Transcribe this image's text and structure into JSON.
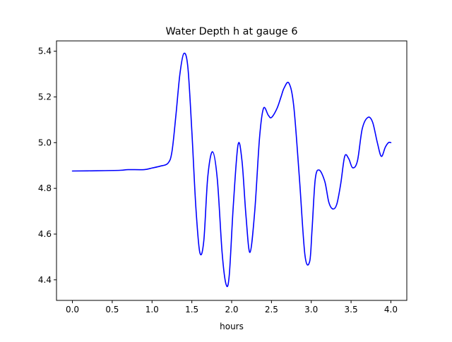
{
  "chart_data": {
    "type": "line",
    "title": "Water Depth h at gauge 6",
    "xlabel": "hours",
    "ylabel": "",
    "xlim": [
      -0.2,
      4.2
    ],
    "ylim": [
      4.31,
      5.445
    ],
    "xticks": [
      0.0,
      0.5,
      1.0,
      1.5,
      2.0,
      2.5,
      3.0,
      3.5,
      4.0
    ],
    "xtick_labels": [
      "0.0",
      "0.5",
      "1.0",
      "1.5",
      "2.0",
      "2.5",
      "3.0",
      "3.5",
      "4.0"
    ],
    "yticks": [
      4.4,
      4.6,
      4.8,
      5.0,
      5.2,
      5.4
    ],
    "ytick_labels": [
      "4.4",
      "4.6",
      "4.8",
      "5.0",
      "5.2",
      "5.4"
    ],
    "grid": false,
    "legend": "none",
    "series": [
      {
        "color": "#0000ff",
        "x": [
          0.0,
          0.3,
          0.6,
          0.7,
          0.9,
          1.0,
          1.1,
          1.2,
          1.25,
          1.3,
          1.35,
          1.4,
          1.45,
          1.5,
          1.55,
          1.6,
          1.65,
          1.7,
          1.76,
          1.82,
          1.88,
          1.93,
          1.97,
          2.02,
          2.08,
          2.13,
          2.18,
          2.23,
          2.29,
          2.35,
          2.4,
          2.46,
          2.5,
          2.57,
          2.62,
          2.66,
          2.72,
          2.78,
          2.85,
          2.92,
          2.98,
          3.01,
          3.05,
          3.1,
          3.17,
          3.22,
          3.27,
          3.32,
          3.37,
          3.42,
          3.47,
          3.52,
          3.58,
          3.64,
          3.71,
          3.77,
          3.83,
          3.88,
          3.93,
          3.97,
          4.0
        ],
        "y": [
          4.876,
          4.877,
          4.879,
          4.882,
          4.882,
          4.889,
          4.897,
          4.91,
          4.96,
          5.12,
          5.3,
          5.39,
          5.33,
          5.05,
          4.72,
          4.52,
          4.57,
          4.85,
          4.96,
          4.84,
          4.52,
          4.38,
          4.42,
          4.72,
          4.99,
          4.92,
          4.68,
          4.52,
          4.7,
          5.02,
          5.15,
          5.12,
          5.11,
          5.15,
          5.2,
          5.24,
          5.26,
          5.16,
          4.85,
          4.51,
          4.48,
          4.62,
          4.84,
          4.88,
          4.83,
          4.74,
          4.71,
          4.73,
          4.82,
          4.94,
          4.93,
          4.89,
          4.92,
          5.06,
          5.11,
          5.09,
          5.0,
          4.94,
          4.98,
          5.0,
          5.0
        ]
      }
    ]
  }
}
